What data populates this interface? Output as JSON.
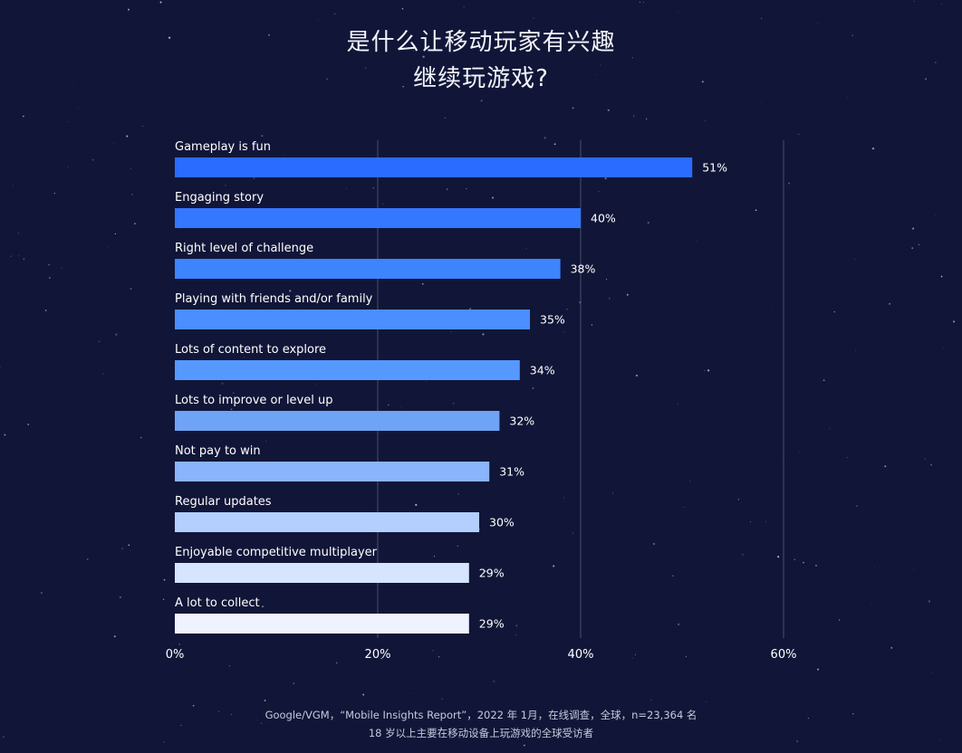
{
  "title": {
    "line1": "是什么让移动玩家有兴趣",
    "line2": "继续玩游戏?"
  },
  "source": {
    "line1": "Google/VGM，“Mobile Insights Report”，2022 年 1月，在线调查，全球，n=23,364 名",
    "line2": "18 岁以上主要在移动设备上玩游戏的全球受访者"
  },
  "colors": {
    "background": "#111638",
    "gridline": "#4a4f6a",
    "text": "#ffffff"
  },
  "chart_data": {
    "type": "bar",
    "orientation": "horizontal",
    "categories": [
      "Gameplay is fun",
      "Engaging story",
      "Right level of challenge",
      "Playing with friends and/or family",
      "Lots of content to explore",
      "Lots to improve or level up",
      "Not pay to win",
      "Regular updates",
      "Enjoyable competitive multiplayer",
      "A lot to collect"
    ],
    "values": [
      51,
      40,
      38,
      35,
      34,
      32,
      31,
      30,
      29,
      29
    ],
    "value_labels": [
      "51%",
      "40%",
      "38%",
      "35%",
      "34%",
      "32%",
      "31%",
      "30%",
      "29%",
      "29%"
    ],
    "bar_colors": [
      "#2a6cff",
      "#3378ff",
      "#3d84ff",
      "#4b8eff",
      "#5599ff",
      "#6ea3f5",
      "#8ab4fb",
      "#b4cffd",
      "#d6e4fe",
      "#eef3ff"
    ],
    "xlim": [
      0,
      60
    ],
    "xticks": [
      0,
      20,
      40,
      60
    ],
    "xtick_labels": [
      "0%",
      "20%",
      "40%",
      "60%"
    ],
    "grid": true,
    "xlabel": "",
    "ylabel": ""
  }
}
